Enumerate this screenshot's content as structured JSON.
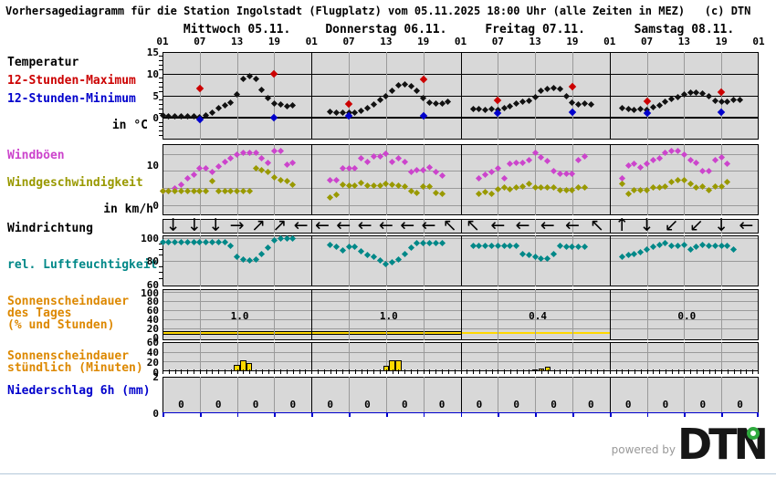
{
  "title": "Vorhersagediagramm für die Station Ingolstadt (Flugplatz) vom 05.11.2025 18:00 Uhr (alle Zeiten in MEZ)   (c) DTN",
  "labels": {
    "temperatur": "Temperatur",
    "max12": "12-Stunden-Maximum",
    "min12": "12-Stunden-Minimum",
    "temp_unit": "in °C",
    "gusts": "Windböen",
    "speed": "Windgeschwindigkeit",
    "wind_unit": "in km/h",
    "direction": "Windrichtung",
    "humidity": "rel. Luftfeuchtigkeit",
    "sun_day_1": "Sonnenscheindauer",
    "sun_day_2": "des Tages",
    "sun_day_3": "(% und Stunden)",
    "sun_hour_1": "Sonnenscheindauer",
    "sun_hour_2": "stündlich (Minuten)",
    "precip": "Niederschlag 6h (mm)"
  },
  "footer": {
    "powered_by": "powered by",
    "brand": "DTN"
  },
  "colors": {
    "plot_bg": "#d8d8d8",
    "grid_gray": "#9a9a9a",
    "grid_black": "#000000",
    "temp": "#111111",
    "max": "#cc0000",
    "min": "#0000cc",
    "gusts": "#cc44cc",
    "speed": "#999900",
    "humidity": "#008888",
    "sun": "#ffd800",
    "precip_axis": "#0000cc"
  },
  "chart_data": {
    "type": "meteogram",
    "days": [
      {
        "label": "Mittwoch 05.11."
      },
      {
        "label": "Donnerstag 06.11."
      },
      {
        "label": "Freitag 07.11."
      },
      {
        "label": "Samstag 08.11."
      }
    ],
    "hour_tick_labels": [
      "01",
      "07",
      "13",
      "19"
    ],
    "final_tick_label": "01",
    "temperature": {
      "unit": "°C",
      "ylim": [
        -5,
        15
      ],
      "ticks": [
        15,
        10,
        5,
        0
      ],
      "series": [
        {
          "start": 1,
          "values": [
            0.5,
            0.3,
            0.3,
            0.3,
            0.3,
            0.3,
            0.1,
            0.4,
            1.1,
            2.1,
            2.7,
            3.4,
            5.2,
            8.8,
            9.3,
            8.7,
            6.3,
            4.5,
            3.1,
            2.9,
            2.6,
            2.8
          ]
        },
        {
          "start": 4,
          "values": [
            1.2,
            1.1,
            1.0,
            1.0,
            1.1,
            1.5,
            2.2,
            3.0,
            3.9,
            4.8,
            6.1,
            7.3,
            7.6,
            7.1,
            6.0,
            4.4,
            3.3,
            3.1,
            3.2,
            3.5
          ]
        },
        {
          "start": 3,
          "values": [
            2.0,
            1.9,
            1.7,
            2.0,
            1.7,
            2.2,
            2.6,
            3.1,
            3.5,
            3.8,
            4.7,
            6.1,
            6.5,
            6.7,
            6.4,
            4.9,
            3.3,
            3.0,
            3.1,
            3.0
          ]
        },
        {
          "start": 3,
          "values": [
            2.2,
            2.0,
            1.7,
            2.0,
            1.7,
            2.4,
            2.8,
            3.5,
            4.2,
            4.7,
            5.2,
            5.6,
            5.7,
            5.5,
            4.9,
            3.8,
            3.5,
            3.6,
            4.0,
            3.9
          ]
        }
      ],
      "max12h": [
        {
          "day": 0,
          "hour": 7,
          "value": 6.5
        },
        {
          "day": 0,
          "hour": 19,
          "value": 9.9
        },
        {
          "day": 1,
          "hour": 7,
          "value": 3.0
        },
        {
          "day": 1,
          "hour": 19,
          "value": 8.6
        },
        {
          "day": 2,
          "hour": 7,
          "value": 3.8
        },
        {
          "day": 2,
          "hour": 19,
          "value": 7.0
        },
        {
          "day": 3,
          "hour": 7,
          "value": 3.6
        },
        {
          "day": 3,
          "hour": 19,
          "value": 5.7
        }
      ],
      "min12h": [
        {
          "day": 0,
          "hour": 7,
          "value": -0.4
        },
        {
          "day": 0,
          "hour": 19,
          "value": 0.0
        },
        {
          "day": 1,
          "hour": 7,
          "value": 0.3
        },
        {
          "day": 1,
          "hour": 19,
          "value": 0.4
        },
        {
          "day": 2,
          "hour": 7,
          "value": 1.0
        },
        {
          "day": 2,
          "hour": 19,
          "value": 1.2
        },
        {
          "day": 3,
          "hour": 7,
          "value": 0.9
        },
        {
          "day": 3,
          "hour": 19,
          "value": 1.1
        }
      ]
    },
    "wind": {
      "unit": "km/h",
      "ticks": [
        10,
        0
      ],
      "gusts": [
        {
          "start": 1,
          "values": [
            3.3,
            3.3,
            4,
            5,
            6.5,
            7.5,
            9,
            9,
            8,
            9.5,
            10.5,
            11.5,
            12.3,
            12.8,
            12.8,
            12.8,
            11.5,
            10.3,
            13.2,
            13.2,
            10,
            10.4
          ]
        },
        {
          "start": 4,
          "values": [
            6,
            6,
            9,
            9,
            9,
            11.5,
            10.5,
            12,
            12,
            12.5,
            10.5,
            11.5,
            10.5,
            8,
            8.5,
            8.5,
            9.3,
            8.2,
            7.3
          ]
        },
        {
          "start": 4,
          "values": [
            6.6,
            7.5,
            8.2,
            9.1,
            6.6,
            10.2,
            10.3,
            10.4,
            11,
            12.9,
            11.6,
            10.7,
            8.4,
            7.7,
            7.7,
            7.7,
            11,
            11.8
          ]
        },
        {
          "start": 3,
          "values": [
            6.6,
            9.6,
            10.2,
            9.3,
            10.2,
            11.1,
            11.4,
            12.7,
            13.2,
            13.2,
            12.3,
            11.1,
            10.4,
            8.4,
            8.4,
            11.1,
            11.6,
            10.2
          ]
        }
      ],
      "speed": [
        {
          "start": 1,
          "values": [
            3.3,
            3.3,
            3.3,
            3.3,
            3.3,
            3.3,
            3.3,
            3.3,
            5.9,
            3.3,
            3.3,
            3.3,
            3.3,
            3.3,
            3.3,
            9.1,
            8.6,
            8.2,
            6.8,
            6,
            5.9,
            5
          ]
        },
        {
          "start": 4,
          "values": [
            1.7,
            2.4,
            5,
            4.7,
            4.7,
            5.3,
            4.7,
            4.7,
            4.7,
            5.2,
            5,
            4.7,
            4.5,
            3.3,
            3,
            4.4,
            4.5,
            3,
            2.8
          ]
        },
        {
          "start": 4,
          "values": [
            2.8,
            3.2,
            2.8,
            3.9,
            4.2,
            3.9,
            4.2,
            4.6,
            5.1,
            4.2,
            4.2,
            4.2,
            4.2,
            3.5,
            3.7,
            3.7,
            4.2,
            4.2
          ]
        },
        {
          "start": 3,
          "values": [
            5.1,
            2.8,
            3.5,
            3.5,
            3.5,
            4.2,
            4.2,
            4.6,
            5.7,
            6,
            6,
            5.1,
            4.2,
            4.4,
            3.7,
            4.4,
            4.4,
            5.7
          ]
        }
      ]
    },
    "wind_direction": {
      "arrows": [
        [
          "↓",
          "↓",
          "↓",
          "→",
          "↗",
          "↗",
          "←"
        ],
        [
          "←",
          "←",
          "←",
          "←",
          "←",
          "←",
          "↖"
        ],
        [
          "↖",
          "←",
          "←",
          "←",
          "←",
          "↖"
        ],
        [
          "↑",
          "↓",
          "↙",
          "↙",
          "↓",
          "←"
        ]
      ]
    },
    "humidity": {
      "unit": "%",
      "ticks": [
        100,
        80,
        60
      ],
      "series": [
        {
          "start": 1,
          "values": [
            96,
            96,
            96,
            96,
            96,
            96,
            96,
            96,
            96,
            96,
            96,
            93,
            83,
            81,
            80,
            81,
            86,
            91,
            98,
            99,
            99,
            99
          ]
        },
        {
          "start": 4,
          "values": [
            94,
            92,
            89,
            92,
            92,
            88,
            85,
            83,
            80,
            77,
            79,
            81,
            86,
            91,
            95,
            95,
            95,
            95,
            95
          ]
        },
        {
          "start": 3,
          "values": [
            93,
            93,
            93,
            93,
            93,
            93,
            93,
            93,
            86,
            85,
            83,
            82,
            82,
            86,
            93,
            92,
            92,
            92,
            92
          ]
        },
        {
          "start": 3,
          "values": [
            83,
            85,
            86,
            87,
            90,
            92,
            94,
            95,
            93,
            93,
            94,
            90,
            92,
            94,
            93,
            93,
            93,
            93,
            90
          ]
        }
      ]
    },
    "sunshine_daily": {
      "ticks": [
        100,
        80,
        60,
        40,
        20,
        0
      ],
      "labels": [
        "1.0",
        "1.0",
        "0.4",
        "0.0"
      ],
      "bands": [
        {
          "top": 13.5,
          "bottom": 4.5
        },
        {
          "top": 13.5,
          "bottom": 4.5
        },
        {
          "top": 11,
          "bottom": 7
        },
        null
      ]
    },
    "sunshine_hourly": {
      "ticks": [
        60,
        40,
        20,
        0
      ],
      "bars": [
        [
          {
            "hour": 13,
            "minutes": 14
          },
          {
            "hour": 14,
            "minutes": 23
          },
          {
            "hour": 15,
            "minutes": 18
          }
        ],
        [
          {
            "hour": 13,
            "minutes": 11
          },
          {
            "hour": 14,
            "minutes": 23
          },
          {
            "hour": 15,
            "minutes": 23
          }
        ],
        [
          {
            "hour": 13,
            "minutes": 5
          },
          {
            "hour": 14,
            "minutes": 7
          },
          {
            "hour": 15,
            "minutes": 9
          }
        ],
        []
      ]
    },
    "precip": {
      "ticks": [
        2,
        0
      ],
      "values_6h": [
        [
          "0",
          "0",
          "0",
          "0"
        ],
        [
          "0",
          "0",
          "0",
          "0"
        ],
        [
          "0",
          "0",
          "0",
          "0"
        ],
        [
          "0",
          "0",
          "0",
          "0"
        ]
      ]
    }
  }
}
